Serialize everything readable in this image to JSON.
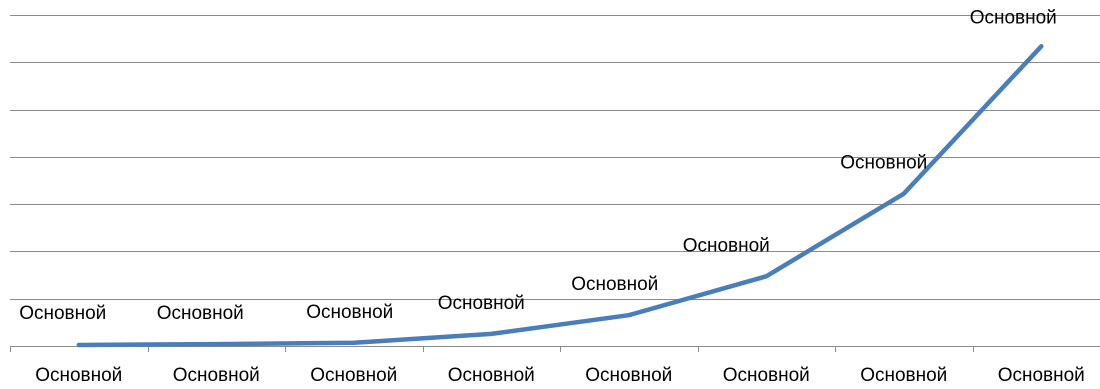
{
  "chart_data": {
    "type": "line",
    "categories": [
      "Основной",
      "Основной",
      "Основной",
      "Основной",
      "Основной",
      "Основной",
      "Основной",
      "Основной"
    ],
    "series": [
      {
        "values": [
          0.6,
          1.2,
          2.0,
          7.5,
          19.0,
          43.0,
          94.0,
          185.0
        ],
        "data_labels": [
          "Основной",
          "Основной",
          "Основной",
          "Основной",
          "Основной",
          "Основной",
          "Основной",
          "Основной"
        ],
        "color": "#4a7ebb"
      }
    ],
    "title": "",
    "xlabel": "",
    "ylabel": "",
    "ylim": [
      0,
      200
    ],
    "gridlines": "horizontal",
    "legend": "none"
  }
}
